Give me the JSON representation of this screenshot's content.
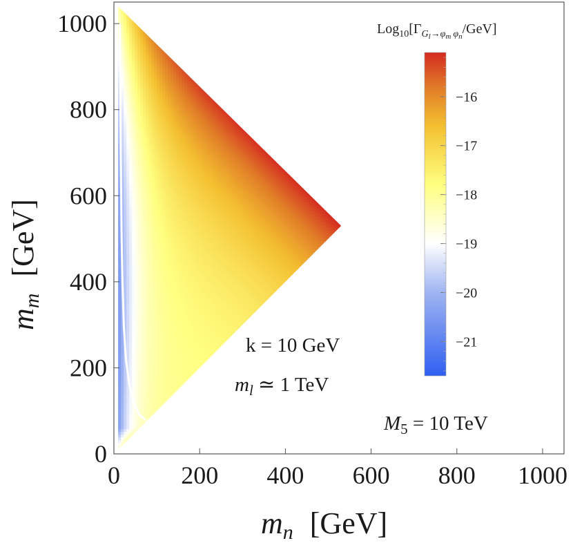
{
  "chart_data": {
    "type": "heatmap",
    "xlabel_var": "m",
    "xlabel_sub": "n",
    "xlabel_unit": "[GeV]",
    "ylabel_var": "m",
    "ylabel_sub": "m",
    "ylabel_unit": "[GeV]",
    "xlim": [
      0,
      1050
    ],
    "ylim": [
      0,
      1050
    ],
    "x_ticks": [
      0,
      200,
      400,
      600,
      800,
      1000
    ],
    "y_ticks": [
      0,
      200,
      400,
      600,
      800,
      1000
    ],
    "region_vertices": [
      [
        10,
        10
      ],
      [
        10,
        1040
      ],
      [
        530,
        530
      ]
    ],
    "kinematic_edge_value": 1050,
    "colorbar": {
      "title_main": "Log",
      "title_sub10": "10",
      "title_gamma": "[Γ",
      "title_G": "G",
      "title_l": "l",
      "title_arrow": "→",
      "title_phi1": "φ",
      "title_m": "m",
      "title_phi2": "φ",
      "title_n": "n",
      "title_tail": "/GeV]",
      "range": [
        -21.7,
        -15.1
      ],
      "ticks": [
        -16,
        -17,
        -18,
        -19,
        -20,
        -21
      ],
      "tick_labels": [
        "−16",
        "−17",
        "−18",
        "−19",
        "−20",
        "−21"
      ],
      "colormap": [
        {
          "value": -21.7,
          "color": "#2f5ff0"
        },
        {
          "value": -20.0,
          "color": "#9fb4f2"
        },
        {
          "value": -19.0,
          "color": "#ffffff"
        },
        {
          "value": -17.8,
          "color": "#ffff80"
        },
        {
          "value": -16.6,
          "color": "#f4c030"
        },
        {
          "value": -15.8,
          "color": "#e07a28"
        },
        {
          "value": -15.1,
          "color": "#d42a20"
        }
      ]
    },
    "annotations": {
      "k_text": "k = 10 GeV",
      "ml_var": "m",
      "ml_sub": "l",
      "ml_rest": " ≃ 1 TeV",
      "M5_var": "M",
      "M5_sub": "5",
      "M5_rest": " = 10 TeV"
    },
    "white_contour_curve": [
      [
        14,
        1000
      ],
      [
        16,
        700
      ],
      [
        18,
        500
      ],
      [
        20,
        400
      ],
      [
        23,
        300
      ],
      [
        28,
        220
      ],
      [
        36,
        160
      ],
      [
        46,
        120
      ],
      [
        60,
        90
      ],
      [
        75,
        78
      ]
    ]
  }
}
